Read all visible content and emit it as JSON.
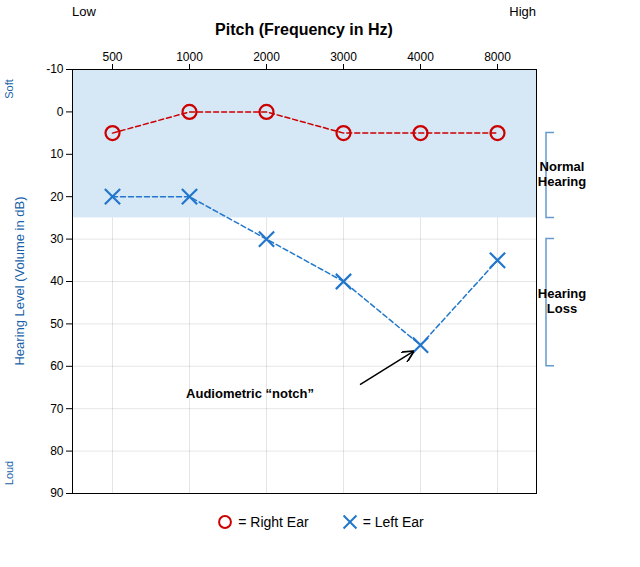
{
  "chart_data": {
    "type": "line",
    "title": "Pitch (Frequency in Hz)",
    "ylabel": "Hearing Level (Volume in dB)",
    "x_end_labels": [
      "Low",
      "High"
    ],
    "y_end_labels": [
      "Soft",
      "Loud"
    ],
    "categories": [
      "500",
      "1000",
      "2000",
      "3000",
      "4000",
      "8000"
    ],
    "series": [
      {
        "name": "= Right Ear",
        "color": "#cc0000",
        "marker": "circle",
        "line_style": "dashed",
        "values": [
          5,
          0,
          0,
          5,
          5,
          5
        ]
      },
      {
        "name": "= Left Ear",
        "color": "#2277cc",
        "marker": "x",
        "line_style": "dashed",
        "values": [
          20,
          20,
          30,
          40,
          55,
          35
        ]
      }
    ],
    "ylim": [
      90,
      -10
    ],
    "yticks": [
      -10,
      0,
      10,
      20,
      30,
      40,
      50,
      60,
      70,
      80,
      90
    ],
    "grid": true,
    "legend": "bottom",
    "shaded_band": {
      "from": -10,
      "to": 25
    },
    "brackets": [
      {
        "label": "Normal\nHearing",
        "from": 5,
        "to": 25
      },
      {
        "label": "Hearing\nLoss",
        "from": 30,
        "to": 60
      }
    ],
    "annotations": [
      {
        "text": "Audiometric “notch”",
        "x": "4000",
        "y": 55
      }
    ]
  }
}
